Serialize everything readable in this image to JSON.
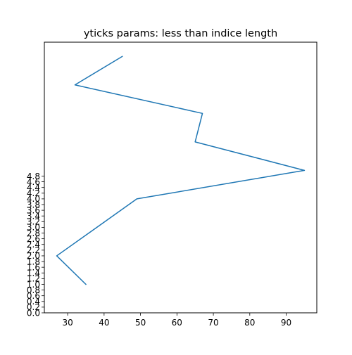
{
  "chart_data": {
    "type": "line",
    "title": "yticks params: less than indice length",
    "xlabel": "",
    "ylabel": "",
    "xlim": [
      23.6,
      98.4
    ],
    "ylim": [
      0,
      9.5
    ],
    "xticks": [
      30,
      40,
      50,
      60,
      70,
      80,
      90
    ],
    "xtick_labels": [
      "30",
      "40",
      "50",
      "60",
      "70",
      "80",
      "90"
    ],
    "yticks": [
      0.0,
      0.2,
      0.4,
      0.6,
      0.8,
      1.0,
      1.2,
      1.4,
      1.6,
      1.8,
      2.0,
      2.2,
      2.4,
      2.6,
      2.8,
      3.0,
      3.2,
      3.4,
      3.6,
      3.8,
      4.0,
      4.2,
      4.4,
      4.6,
      4.8
    ],
    "ytick_labels": [
      "0.0",
      "0.2",
      "0.4",
      "0.6",
      "0.8",
      "1.0",
      "1.2",
      "1.4",
      "1.6",
      "1.8",
      "2.0",
      "2.2",
      "2.4",
      "2.6",
      "2.8",
      "3.0",
      "3.2",
      "3.4",
      "3.6",
      "3.8",
      "4.0",
      "4.2",
      "4.4",
      "4.6",
      "4.8"
    ],
    "grid": false,
    "series": [
      {
        "color": "#1f77b4",
        "x": [
          35,
          27,
          49,
          95,
          65,
          67,
          32,
          45
        ],
        "y": [
          1,
          2,
          4,
          5,
          6,
          7,
          8,
          9
        ]
      }
    ]
  }
}
